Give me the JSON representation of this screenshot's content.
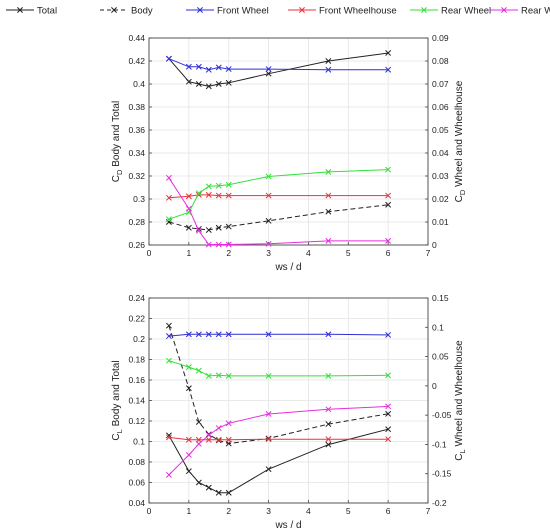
{
  "legend": {
    "entries": [
      {
        "label": "Total",
        "color": "#222222",
        "dash": "solid"
      },
      {
        "label": "Body",
        "color": "#222222",
        "dash": "dashed"
      },
      {
        "label": "Front Wheel",
        "color": "#2f2fd6",
        "dash": "solid"
      },
      {
        "label": "Front Wheelhouse",
        "color": "#e8323c",
        "dash": "solid"
      },
      {
        "label": "Rear Wheel",
        "color": "#33e03a",
        "dash": "solid"
      },
      {
        "label": "Rear Wheelhouse",
        "color": "#e62ee0",
        "dash": "solid"
      }
    ],
    "placement": "top"
  },
  "chart_data": [
    {
      "type": "line",
      "xlabel": "ws / d",
      "ylabel_left": "C_D Body and Total",
      "ylabel_left_main": "C",
      "ylabel_left_sub": "D",
      "ylabel_left_rest": " Body and Total",
      "ylabel_right_main": "C",
      "ylabel_right_sub": "D",
      "ylabel_right_rest": " Wheel and Wheelhouse",
      "xlim": [
        0,
        7
      ],
      "ylim_left": [
        0.26,
        0.44
      ],
      "ylim_right": [
        0,
        0.09
      ],
      "xticks": [
        "0",
        "1",
        "2",
        "3",
        "4",
        "5",
        "6",
        "7"
      ],
      "yticks_left": [
        "0.26",
        "0.28",
        "0.3",
        "0.32",
        "0.34",
        "0.36",
        "0.38",
        "0.4",
        "0.42",
        "0.44"
      ],
      "yticks_right": [
        "0",
        "0.01",
        "0.02",
        "0.03",
        "0.04",
        "0.05",
        "0.06",
        "0.07",
        "0.08",
        "0.09"
      ],
      "grid": true,
      "series": [
        {
          "name": "Total",
          "axis": "left",
          "color": "#222222",
          "dash": "solid",
          "x": [
            0.5,
            1,
            1.25,
            1.5,
            1.75,
            2,
            3,
            4.5,
            6
          ],
          "y": [
            0.422,
            0.402,
            0.4,
            0.398,
            0.4,
            0.401,
            0.409,
            0.42,
            0.427
          ]
        },
        {
          "name": "Body",
          "axis": "left",
          "color": "#222222",
          "dash": "dashed",
          "x": [
            0.5,
            1,
            1.25,
            1.5,
            1.75,
            2,
            3,
            4.5,
            6
          ],
          "y": [
            0.28,
            0.275,
            0.274,
            0.273,
            0.275,
            0.276,
            0.281,
            0.289,
            0.295
          ]
        },
        {
          "name": "Front Wheel",
          "axis": "right",
          "color": "#2f2fd6",
          "dash": "solid",
          "x": [
            0.5,
            1,
            1.25,
            1.5,
            1.75,
            2,
            3,
            4.5,
            6
          ],
          "y": [
            0.081,
            0.0775,
            0.0775,
            0.0762,
            0.0772,
            0.0765,
            0.0765,
            0.0762,
            0.0762
          ]
        },
        {
          "name": "Front Wheelhouse",
          "axis": "right",
          "color": "#e8323c",
          "dash": "solid",
          "x": [
            0.5,
            1,
            1.25,
            1.5,
            1.75,
            2,
            3,
            4.5,
            6
          ],
          "y": [
            0.0205,
            0.0212,
            0.0218,
            0.0218,
            0.0215,
            0.0215,
            0.0215,
            0.0215,
            0.0215
          ]
        },
        {
          "name": "Rear Wheel",
          "axis": "right",
          "color": "#33e03a",
          "dash": "solid",
          "x": [
            0.5,
            1,
            1.25,
            1.5,
            1.75,
            2,
            3,
            4.5,
            6
          ],
          "y": [
            0.0112,
            0.0142,
            0.0225,
            0.0255,
            0.0258,
            0.0262,
            0.0298,
            0.0318,
            0.0328
          ]
        },
        {
          "name": "Rear Wheelhouse",
          "axis": "right",
          "color": "#e62ee0",
          "dash": "solid",
          "x": [
            0.5,
            1,
            1.25,
            1.5,
            1.75,
            2,
            3,
            4.5,
            6
          ],
          "y": [
            0.0292,
            0.0158,
            0.0062,
            0.0002,
            0.0002,
            0.0002,
            0.0005,
            0.0018,
            0.0018
          ]
        }
      ]
    },
    {
      "type": "line",
      "xlabel": "ws / d",
      "ylabel_left": "C_L Body and Total",
      "ylabel_left_main": "C",
      "ylabel_left_sub": "L",
      "ylabel_left_rest": " Body and Total",
      "ylabel_right_main": "C",
      "ylabel_right_sub": "L",
      "ylabel_right_rest": " Wheel and Wheelhouse",
      "xlim": [
        0,
        7
      ],
      "ylim_left": [
        0.04,
        0.24
      ],
      "ylim_right": [
        -0.2,
        0.15
      ],
      "xticks": [
        "0",
        "1",
        "2",
        "3",
        "4",
        "5",
        "6",
        "7"
      ],
      "yticks_left": [
        "0.04",
        "0.06",
        "0.08",
        "0.1",
        "0.12",
        "0.14",
        "0.16",
        "0.18",
        "0.2",
        "0.22",
        "0.24"
      ],
      "yticks_right": [
        "-0.2",
        "-0.15",
        "-0.1",
        "-0.05",
        "0",
        "0.05",
        "0.1",
        "0.15"
      ],
      "grid": true,
      "series": [
        {
          "name": "Total",
          "axis": "left",
          "color": "#222222",
          "dash": "solid",
          "x": [
            0.5,
            1,
            1.25,
            1.5,
            1.75,
            2,
            3,
            4.5,
            6
          ],
          "y": [
            0.106,
            0.071,
            0.06,
            0.055,
            0.05,
            0.05,
            0.073,
            0.097,
            0.112
          ]
        },
        {
          "name": "Body",
          "axis": "left",
          "color": "#222222",
          "dash": "dashed",
          "x": [
            0.5,
            1,
            1.25,
            1.5,
            1.75,
            2,
            3,
            4.5,
            6
          ],
          "y": [
            0.213,
            0.152,
            0.119,
            0.107,
            0.101,
            0.098,
            0.103,
            0.117,
            0.127
          ]
        },
        {
          "name": "Front Wheel",
          "axis": "right",
          "color": "#2f2fd6",
          "dash": "solid",
          "x": [
            0.5,
            1,
            1.25,
            1.5,
            1.75,
            2,
            3,
            4.5,
            6
          ],
          "y": [
            0.085,
            0.088,
            0.088,
            0.088,
            0.088,
            0.088,
            0.088,
            0.088,
            0.087
          ]
        },
        {
          "name": "Front Wheelhouse",
          "axis": "right",
          "color": "#e8323c",
          "dash": "solid",
          "x": [
            0.5,
            1,
            1.25,
            1.5,
            1.75,
            2,
            3,
            4.5,
            6
          ],
          "y": [
            -0.088,
            -0.092,
            -0.092,
            -0.092,
            -0.092,
            -0.092,
            -0.091,
            -0.091,
            -0.091
          ]
        },
        {
          "name": "Rear Wheel",
          "axis": "right",
          "color": "#33e03a",
          "dash": "solid",
          "x": [
            0.5,
            1,
            1.25,
            1.5,
            1.75,
            2,
            3,
            4.5,
            6
          ],
          "y": [
            0.043,
            0.032,
            0.026,
            0.017,
            0.018,
            0.017,
            0.017,
            0.017,
            0.018
          ]
        },
        {
          "name": "Rear Wheelhouse",
          "axis": "right",
          "color": "#e62ee0",
          "dash": "solid",
          "x": [
            0.5,
            1,
            1.25,
            1.5,
            1.75,
            2,
            3,
            4.5,
            6
          ],
          "y": [
            -0.152,
            -0.118,
            -0.099,
            -0.084,
            -0.072,
            -0.064,
            -0.048,
            -0.04,
            -0.035
          ]
        }
      ]
    }
  ]
}
